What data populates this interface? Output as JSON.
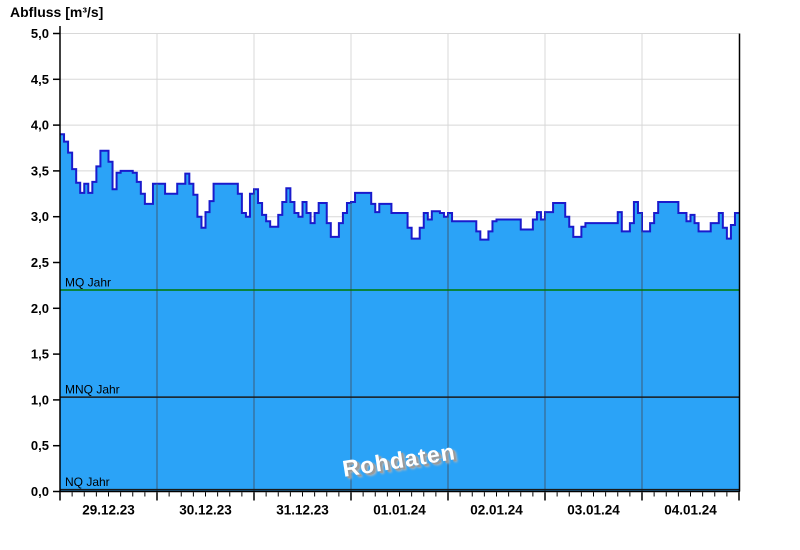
{
  "title": "Abfluss [m³/s]",
  "watermark": "Rohdaten",
  "chart_data": {
    "type": "area",
    "title": "Abfluss [m³/s]",
    "ylabel": "Abfluss [m³/s]",
    "xlabel": "",
    "ylim": [
      0.0,
      5.0
    ],
    "grid": true,
    "legend_position": "none",
    "y_tick_values": [
      5.0,
      4.5,
      4.0,
      3.5,
      3.0,
      2.5,
      2.0,
      1.5,
      1.0,
      0.5,
      0.0
    ],
    "y_tick_labels": [
      "5,0",
      "4,5",
      "4,0",
      "3,5",
      "3,0",
      "2,5",
      "2,0",
      "1,5",
      "1,0",
      "0,5",
      "0,0"
    ],
    "x_day_labels": [
      "29.12.23",
      "30.12.23",
      "31.12.23",
      "01.01.24",
      "02.01.24",
      "03.01.24",
      "04.01.24"
    ],
    "x_start": "29.12.23 00:00",
    "interval_hours": 1,
    "minor_tick_hours": 3,
    "series": [
      {
        "name": "Rohdaten",
        "values": [
          3.9,
          3.82,
          3.7,
          3.52,
          3.37,
          3.26,
          3.36,
          3.26,
          3.38,
          3.55,
          3.72,
          3.72,
          3.6,
          3.3,
          3.48,
          3.5,
          3.5,
          3.5,
          3.48,
          3.38,
          3.25,
          3.14,
          3.14,
          3.36,
          3.36,
          3.36,
          3.25,
          3.25,
          3.25,
          3.36,
          3.36,
          3.47,
          3.36,
          3.24,
          3.0,
          2.88,
          3.05,
          3.17,
          3.36,
          3.36,
          3.36,
          3.36,
          3.36,
          3.36,
          3.25,
          3.04,
          3.0,
          3.25,
          3.3,
          3.15,
          3.02,
          2.95,
          2.89,
          2.89,
          3.02,
          3.16,
          3.31,
          3.16,
          3.04,
          3.0,
          3.16,
          3.04,
          2.93,
          3.04,
          3.15,
          3.15,
          2.93,
          2.78,
          2.78,
          2.93,
          3.04,
          3.15,
          3.16,
          3.26,
          3.26,
          3.26,
          3.26,
          3.14,
          3.05,
          3.14,
          3.14,
          3.14,
          3.04,
          3.04,
          3.04,
          3.04,
          2.88,
          2.76,
          2.76,
          2.88,
          3.04,
          2.97,
          3.06,
          3.06,
          3.04,
          3.0,
          3.04,
          2.95,
          2.95,
          2.95,
          2.95,
          2.95,
          2.95,
          2.84,
          2.75,
          2.75,
          2.84,
          2.95,
          2.97,
          2.97,
          2.97,
          2.97,
          2.97,
          2.97,
          2.86,
          2.86,
          2.86,
          2.97,
          3.05,
          2.97,
          3.05,
          3.05,
          3.15,
          3.15,
          3.15,
          3.0,
          2.89,
          2.78,
          2.78,
          2.89,
          2.93,
          2.93,
          2.93,
          2.93,
          2.93,
          2.93,
          2.93,
          2.93,
          3.05,
          2.84,
          2.84,
          2.93,
          3.16,
          3.04,
          2.84,
          2.84,
          2.93,
          3.04,
          3.16,
          3.16,
          3.16,
          3.16,
          3.16,
          3.04,
          3.04,
          2.95,
          3.02,
          2.93,
          2.84,
          2.84,
          2.84,
          2.93,
          2.93,
          3.04,
          2.88,
          2.76,
          2.91,
          3.04
        ]
      }
    ],
    "reference_lines": [
      {
        "label": "MQ Jahr",
        "value": 2.2,
        "color": "#007a00"
      },
      {
        "label": "MNQ Jahr",
        "value": 1.03,
        "color": "#1a1a1a"
      },
      {
        "label": "NQ Jahr",
        "value": 0.02,
        "color": "#1a1a1a"
      }
    ],
    "colors": {
      "area_fill": "#2BA3F7",
      "area_border": "#1a1acc",
      "grid": "#d8d8d8",
      "grid_on_area": "#39688f",
      "axis": "#000000",
      "tick_label": "#000000"
    }
  }
}
